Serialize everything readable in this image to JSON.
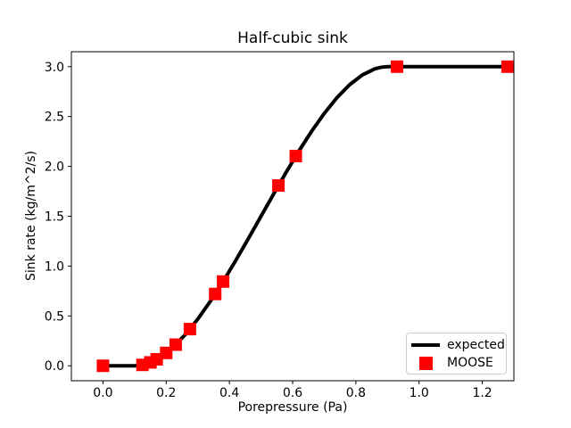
{
  "chart_data": {
    "type": "line",
    "title": "Half-cubic sink",
    "xlabel": "Porepressure (Pa)",
    "ylabel": "Sink rate (kg/m^2/s)",
    "xlim": [
      -0.1,
      1.3
    ],
    "ylim": [
      -0.15,
      3.15
    ],
    "xticks": [
      0.0,
      0.2,
      0.4,
      0.6,
      0.8,
      1.0,
      1.2
    ],
    "xtick_labels": [
      "0.0",
      "0.2",
      "0.4",
      "0.6",
      "0.8",
      "1.0",
      "1.2"
    ],
    "yticks": [
      0.0,
      0.5,
      1.0,
      1.5,
      2.0,
      2.5,
      3.0
    ],
    "ytick_labels": [
      "0.0",
      "0.5",
      "1.0",
      "1.5",
      "2.0",
      "2.5",
      "3.0"
    ],
    "grid": false,
    "background_color": "#ffffff",
    "legend": {
      "position": "lower right",
      "entries": [
        "expected",
        "MOOSE"
      ]
    },
    "series": [
      {
        "name": "expected",
        "type": "line",
        "color": "#000000",
        "linewidth": 4,
        "x": [
          0.0,
          0.1,
          0.12,
          0.14,
          0.18,
          0.22,
          0.26,
          0.3,
          0.34,
          0.38,
          0.42,
          0.46,
          0.5,
          0.54,
          0.58,
          0.62,
          0.66,
          0.7,
          0.74,
          0.78,
          0.82,
          0.86,
          0.88,
          0.9,
          1.3
        ],
        "y": [
          0.0,
          0.0,
          0.006,
          0.022,
          0.084,
          0.182,
          0.312,
          0.469,
          0.648,
          0.845,
          1.056,
          1.276,
          1.5,
          1.724,
          1.944,
          2.155,
          2.352,
          2.531,
          2.688,
          2.818,
          2.916,
          2.978,
          2.994,
          3.0,
          3.0
        ]
      },
      {
        "name": "MOOSE",
        "type": "scatter",
        "marker": "square",
        "color": "#ff0000",
        "markersize": 14,
        "x": [
          0.0,
          0.125,
          0.15,
          0.17,
          0.2,
          0.23,
          0.275,
          0.355,
          0.38,
          0.555,
          0.61,
          0.93,
          1.28
        ],
        "y": [
          0.0,
          0.009,
          0.034,
          0.065,
          0.129,
          0.212,
          0.368,
          0.72,
          0.845,
          1.808,
          2.103,
          3.0,
          3.0
        ]
      }
    ]
  }
}
